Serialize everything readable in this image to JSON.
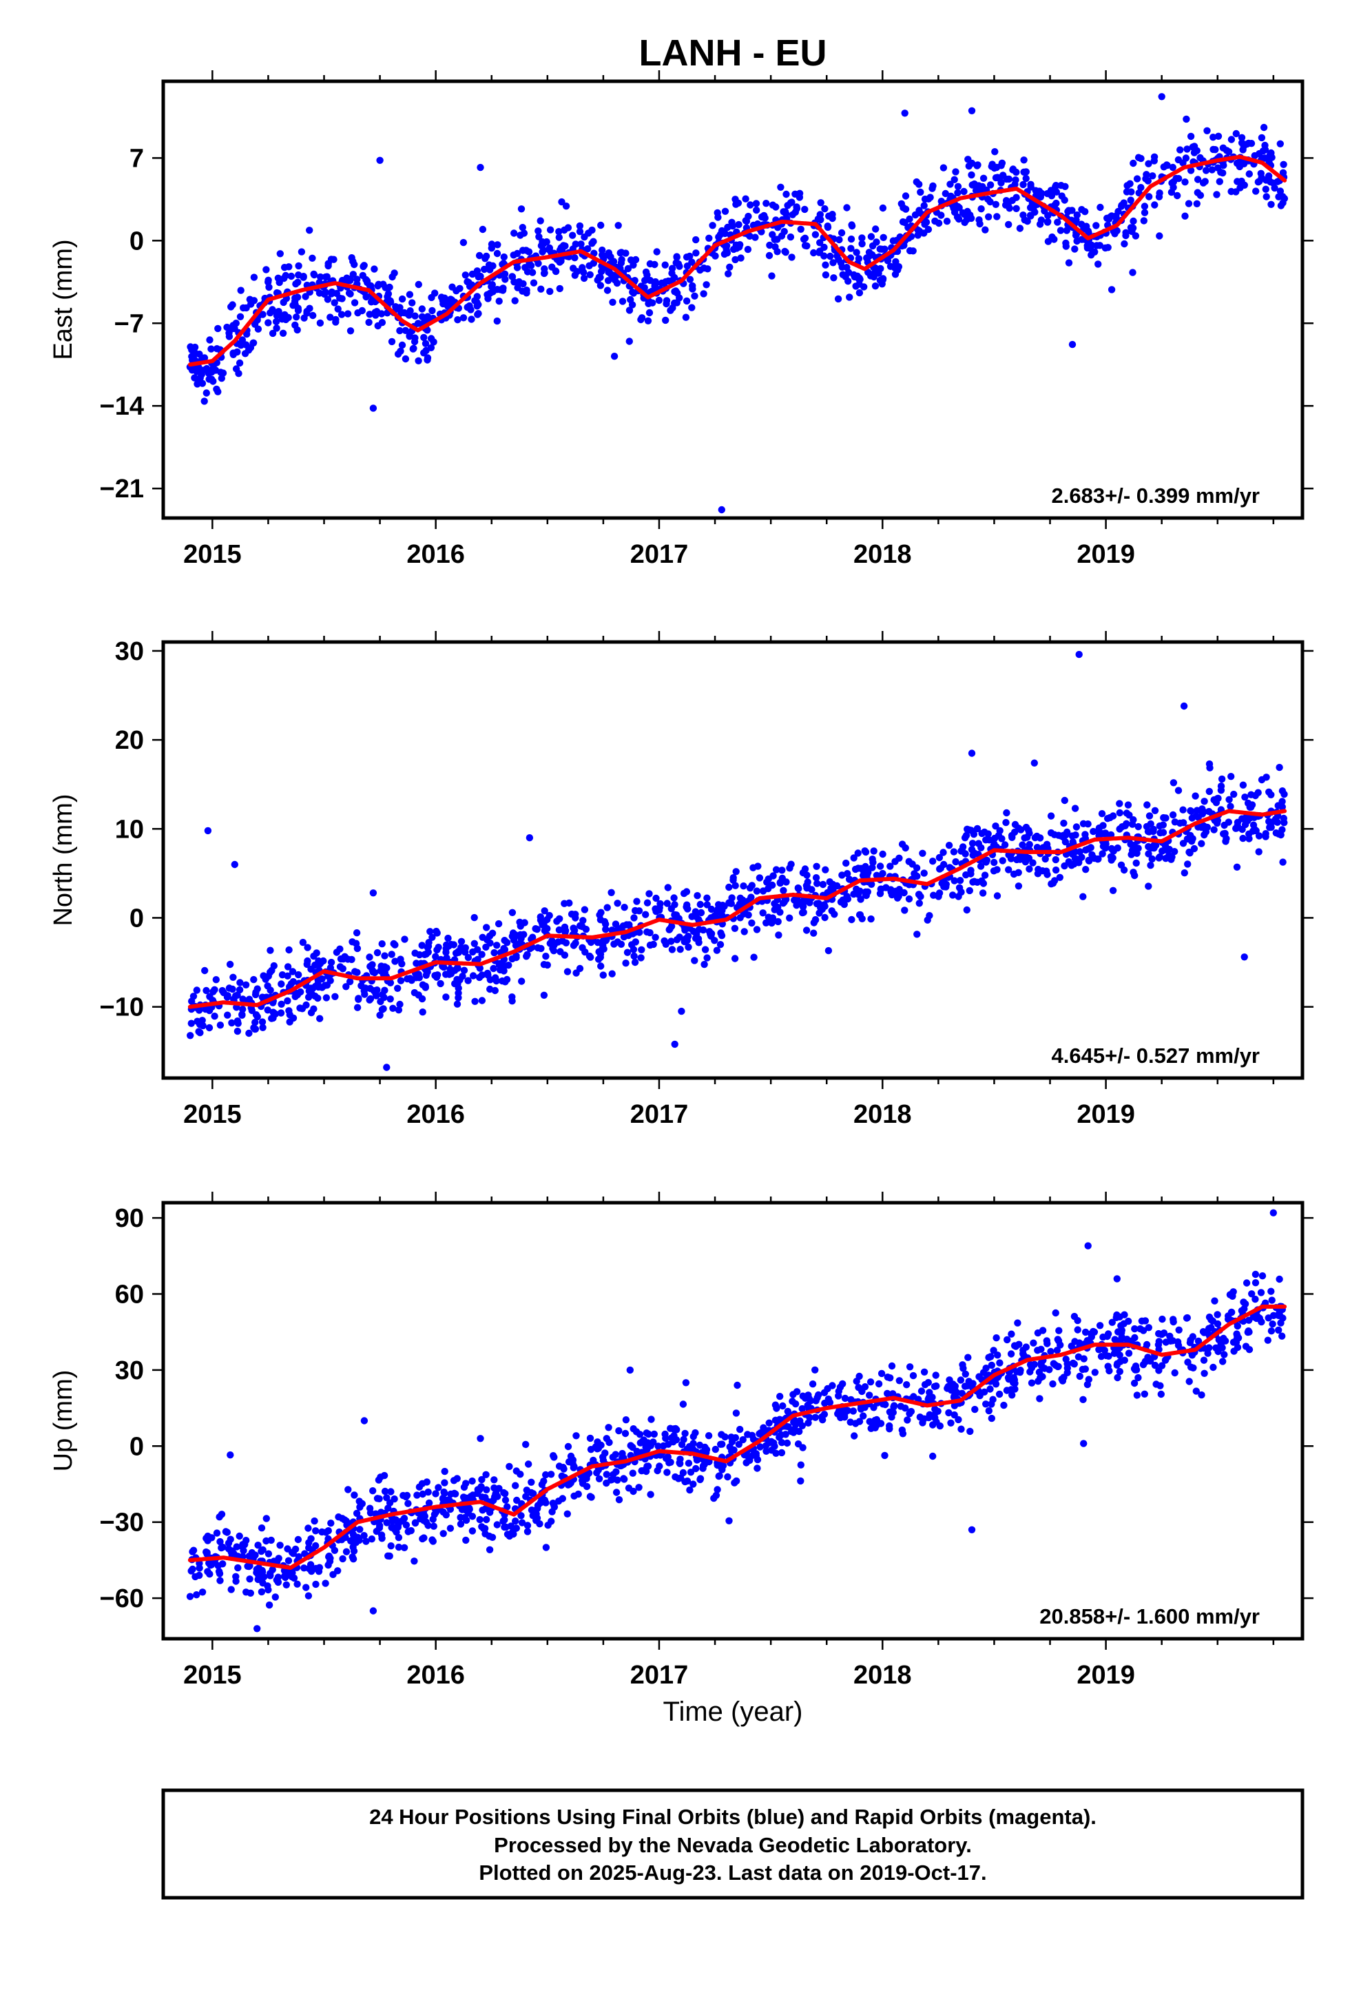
{
  "figure": {
    "title": "LANH - EU",
    "footer": [
      "24 Hour Positions Using Final Orbits (blue) and Rapid Orbits (magenta).",
      "Processed by the Nevada Geodetic Laboratory.",
      "Plotted on 2025-Aug-23. Last data on 2019-Oct-17."
    ],
    "colors": {
      "points": "#0000ff",
      "model": "#ff0000",
      "frame": "#000000"
    }
  },
  "chart_data": [
    {
      "type": "scatter",
      "component": "East",
      "ylabel": "East (mm)",
      "xlabel": "",
      "xlim": [
        2014.78,
        2019.88
      ],
      "ylim": [
        -23.5,
        13.5
      ],
      "xticks": [
        2015,
        2016,
        2017,
        2018,
        2019
      ],
      "yticks": [
        -21,
        -14,
        -7,
        0,
        7
      ],
      "ytick_labels": [
        "−21",
        "−14",
        "−7",
        "0",
        "7"
      ],
      "rate": "2.683+/- 0.399 mm/yr",
      "rate_mm_per_yr": 2.683,
      "model_x": [
        2014.9,
        2015.0,
        2015.1,
        2015.25,
        2015.4,
        2015.55,
        2015.7,
        2015.85,
        2015.92,
        2016.05,
        2016.2,
        2016.35,
        2016.5,
        2016.65,
        2016.8,
        2016.95,
        2017.1,
        2017.25,
        2017.4,
        2017.55,
        2017.7,
        2017.85,
        2017.92,
        2018.05,
        2018.2,
        2018.35,
        2018.5,
        2018.6,
        2018.8,
        2018.92,
        2019.05,
        2019.2,
        2019.35,
        2019.5,
        2019.6,
        2019.7,
        2019.8
      ],
      "model_y": [
        -10.5,
        -10.2,
        -8.5,
        -5.0,
        -4.2,
        -3.6,
        -4.2,
        -6.8,
        -7.6,
        -6.2,
        -3.6,
        -1.8,
        -1.4,
        -0.9,
        -2.4,
        -4.8,
        -3.4,
        -0.4,
        0.8,
        1.6,
        1.4,
        -1.8,
        -2.4,
        -0.8,
        2.4,
        3.6,
        4.1,
        4.4,
        2.1,
        0.2,
        1.3,
        4.6,
        6.2,
        6.8,
        7.1,
        6.6,
        5.1
      ],
      "points_noise_mm": 1.5,
      "points_per_year": 270,
      "outliers": [
        [
          2015.72,
          -14.2
        ],
        [
          2015.75,
          6.8
        ],
        [
          2016.2,
          6.2
        ],
        [
          2016.8,
          -9.8
        ],
        [
          2017.28,
          -22.8
        ],
        [
          2018.1,
          10.8
        ],
        [
          2018.4,
          11.0
        ],
        [
          2018.85,
          -8.8
        ],
        [
          2019.25,
          12.2
        ],
        [
          2019.12,
          -2.7
        ],
        [
          2017.12,
          -6.5
        ]
      ]
    },
    {
      "type": "scatter",
      "component": "North",
      "ylabel": "North (mm)",
      "xlabel": "",
      "xlim": [
        2014.78,
        2019.88
      ],
      "ylim": [
        -18,
        31
      ],
      "xticks": [
        2015,
        2016,
        2017,
        2018,
        2019
      ],
      "yticks": [
        -10,
        0,
        10,
        20,
        30
      ],
      "ytick_labels": [
        "−10",
        "0",
        "10",
        "20",
        "30"
      ],
      "rate": "4.645+/- 0.527 mm/yr",
      "rate_mm_per_yr": 4.645,
      "model_x": [
        2014.9,
        2015.05,
        2015.2,
        2015.35,
        2015.5,
        2015.65,
        2015.8,
        2016.0,
        2016.2,
        2016.35,
        2016.5,
        2016.7,
        2016.85,
        2017.0,
        2017.15,
        2017.3,
        2017.45,
        2017.6,
        2017.75,
        2017.9,
        2018.05,
        2018.2,
        2018.35,
        2018.5,
        2018.65,
        2018.8,
        2018.95,
        2019.1,
        2019.25,
        2019.4,
        2019.55,
        2019.7,
        2019.8
      ],
      "model_y": [
        -10,
        -9.5,
        -9.8,
        -8.2,
        -6.0,
        -6.8,
        -6.8,
        -5.0,
        -5.2,
        -3.8,
        -2.0,
        -2.2,
        -1.6,
        -0.2,
        -0.8,
        -0.2,
        2.2,
        2.6,
        2.2,
        4.2,
        4.4,
        3.8,
        5.6,
        7.6,
        7.4,
        7.4,
        8.8,
        9.0,
        8.6,
        10.6,
        12.0,
        11.6,
        12.0
      ],
      "points_noise_mm": 2.0,
      "points_per_year": 270,
      "outliers": [
        [
          2014.98,
          9.8
        ],
        [
          2015.1,
          6.0
        ],
        [
          2015.72,
          2.8
        ],
        [
          2015.78,
          -16.8
        ],
        [
          2016.42,
          9.0
        ],
        [
          2017.07,
          -14.2
        ],
        [
          2017.1,
          -10.5
        ],
        [
          2018.4,
          18.5
        ],
        [
          2018.68,
          17.4
        ],
        [
          2018.88,
          29.6
        ],
        [
          2019.35,
          23.8
        ],
        [
          2019.62,
          -4.4
        ]
      ]
    },
    {
      "type": "scatter",
      "component": "Up",
      "ylabel": "Up (mm)",
      "xlabel": "Time (year)",
      "xlim": [
        2014.78,
        2019.88
      ],
      "ylim": [
        -76,
        96
      ],
      "xticks": [
        2015,
        2016,
        2017,
        2018,
        2019
      ],
      "yticks": [
        -60,
        -30,
        0,
        30,
        60,
        90
      ],
      "ytick_labels": [
        "−60",
        "−30",
        "0",
        "30",
        "60",
        "90"
      ],
      "rate": "20.858+/- 1.600 mm/yr",
      "rate_mm_per_yr": 20.858,
      "model_x": [
        2014.9,
        2015.05,
        2015.2,
        2015.35,
        2015.5,
        2015.65,
        2015.8,
        2016.0,
        2016.2,
        2016.35,
        2016.5,
        2016.7,
        2016.85,
        2017.0,
        2017.15,
        2017.3,
        2017.45,
        2017.6,
        2017.75,
        2017.9,
        2018.05,
        2018.2,
        2018.35,
        2018.5,
        2018.65,
        2018.8,
        2018.95,
        2019.1,
        2019.25,
        2019.4,
        2019.55,
        2019.7,
        2019.8
      ],
      "model_y": [
        -45,
        -44,
        -46,
        -48,
        -40,
        -30,
        -27,
        -24,
        -22,
        -27,
        -17,
        -8,
        -6,
        -2,
        -3,
        -6,
        2,
        12,
        15,
        17,
        19,
        16,
        18,
        28,
        34,
        36,
        40,
        40,
        36,
        38,
        48,
        55,
        55
      ],
      "points_noise_mm": 7.0,
      "points_per_year": 270,
      "outliers": [
        [
          2015.08,
          -3.5
        ],
        [
          2015.2,
          -72
        ],
        [
          2015.68,
          10
        ],
        [
          2015.72,
          -65
        ],
        [
          2016.2,
          3
        ],
        [
          2016.87,
          30
        ],
        [
          2017.12,
          25
        ],
        [
          2017.35,
          24
        ],
        [
          2018.4,
          -33
        ],
        [
          2018.92,
          79
        ],
        [
          2018.9,
          1
        ],
        [
          2019.05,
          66
        ],
        [
          2019.75,
          92
        ]
      ]
    }
  ]
}
